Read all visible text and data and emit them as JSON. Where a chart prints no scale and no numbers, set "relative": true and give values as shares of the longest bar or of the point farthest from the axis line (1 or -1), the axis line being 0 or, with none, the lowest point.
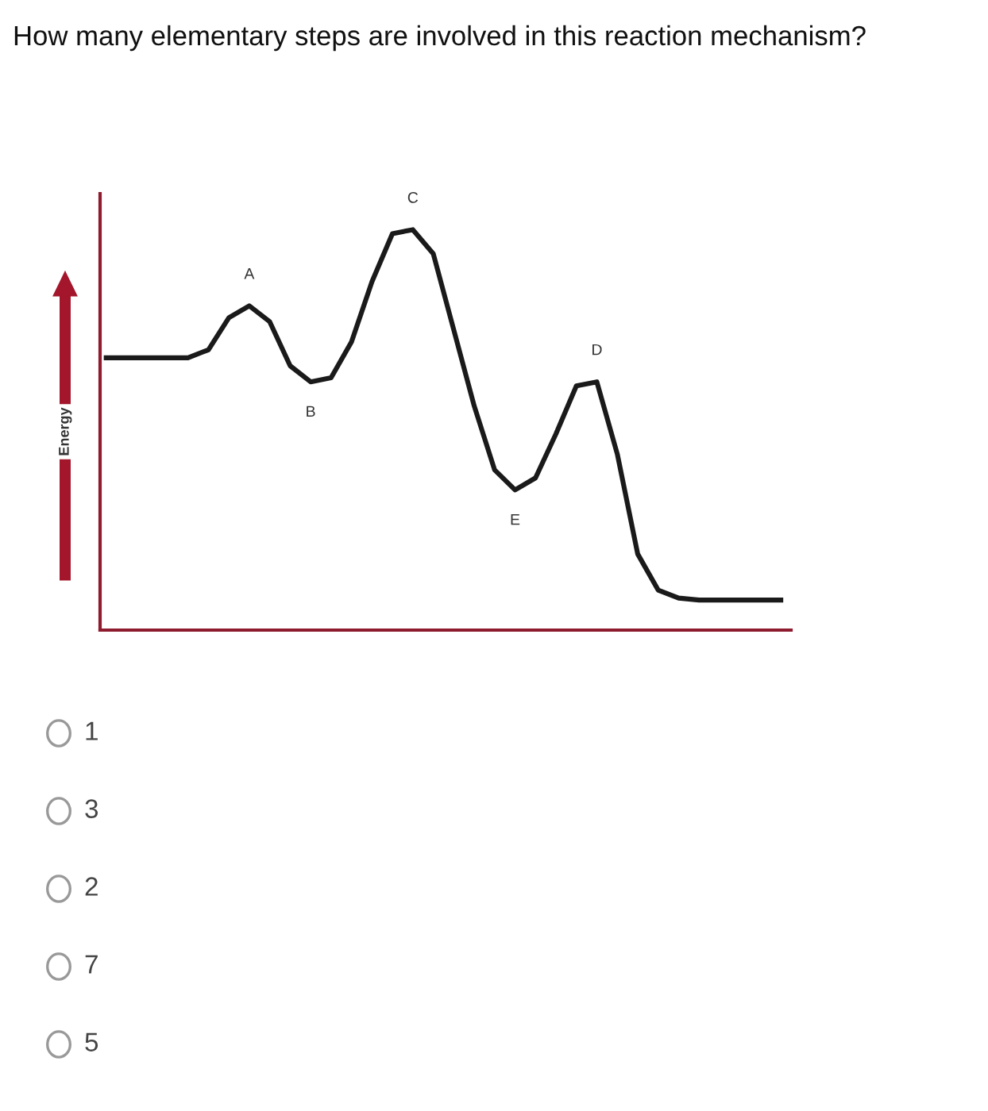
{
  "chart_data": {
    "type": "line",
    "relative": true,
    "title": "How many elementary steps are involved in this reaction mechanism?",
    "ylabel": "Energy",
    "categories": [
      null,
      null,
      null,
      null,
      null,
      null,
      null,
      null,
      null,
      null,
      null,
      null,
      null,
      null,
      null,
      null,
      null,
      null,
      null,
      null,
      null,
      null,
      null,
      null,
      null,
      null,
      null,
      null,
      null,
      null,
      null,
      null,
      null,
      null
    ],
    "series": [
      {
        "color": "#1a1a1a",
        "values": [
          0.68,
          0.68,
          0.68,
          0.68,
          0.68,
          0.7,
          0.78,
          0.81,
          0.77,
          0.66,
          0.62,
          0.63,
          0.72,
          0.87,
          0.99,
          1,
          0.94,
          0.75,
          0.56,
          0.4,
          0.35,
          0.38,
          0.49,
          0.61,
          0.62,
          0.44,
          0.19,
          0.1,
          0.08,
          0.075,
          0.075,
          0.075,
          0.075,
          0.075
        ]
      }
    ],
    "annotations": [
      "A",
      "B",
      "C",
      "E",
      "D",
      "1",
      "3",
      "2",
      "7",
      "5"
    ],
    "legend": false,
    "marker": "none",
    "line_style": "solid"
  }
}
